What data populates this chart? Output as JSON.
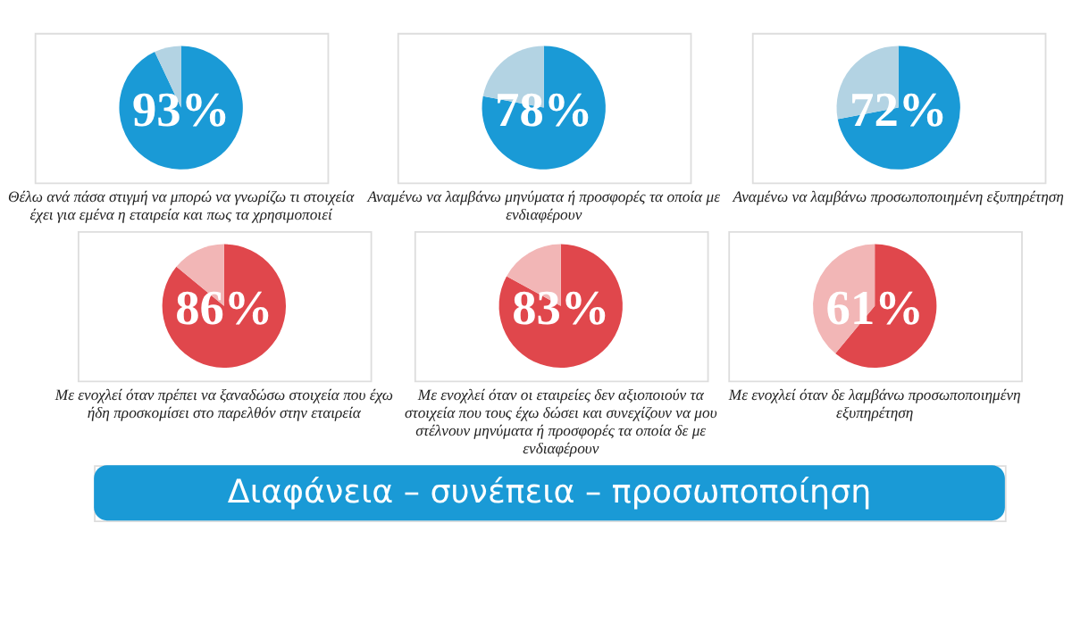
{
  "chart_data": [
    {
      "type": "pie",
      "title": "Θέλω ανά πάσα στιγμή να μπορώ να γνωρίζω τι στοιχεία έχει για εμένα η εταιρεία και πως τα χρησιμοποιεί",
      "categories": [
        null,
        null
      ],
      "values": [
        93,
        7
      ],
      "colors": [
        "#1a9ad6",
        "#b3d3e3"
      ],
      "value_labels": [
        "93%",
        null
      ]
    },
    {
      "type": "pie",
      "title": "Αναμένω να λαμβάνω μηνύματα ή προσφορές τα οποία με ενδιαφέρουν",
      "categories": [
        null,
        null
      ],
      "values": [
        78,
        22
      ],
      "colors": [
        "#1a9ad6",
        "#b3d3e3"
      ],
      "value_labels": [
        "78%",
        null
      ]
    },
    {
      "type": "pie",
      "title": "Αναμένω να λαμβάνω προσωποποιημένη εξυπηρέτηση",
      "categories": [
        null,
        null
      ],
      "values": [
        72,
        28
      ],
      "colors": [
        "#1a9ad6",
        "#b3d3e3"
      ],
      "value_labels": [
        "72%",
        null
      ]
    },
    {
      "type": "pie",
      "title": "Με ενοχλεί όταν πρέπει να ξαναδώσω στοιχεία που έχω ήδη προσκομίσει στο παρελθόν στην εταιρεία",
      "categories": [
        null,
        null
      ],
      "values": [
        86,
        14
      ],
      "colors": [
        "#e0474c",
        "#f2b6b6"
      ],
      "value_labels": [
        "86%",
        null
      ]
    },
    {
      "type": "pie",
      "title": "Με ενοχλεί όταν οι εταιρείες δεν αξιοποιούν τα στοιχεία που τους έχω δώσει και συνεχίζουν να μου στέλνουν μηνύματα ή προσφορές τα οποία δε με ενδιαφέρουν",
      "categories": [
        null,
        null
      ],
      "values": [
        83,
        17
      ],
      "colors": [
        "#e0474c",
        "#f2b6b6"
      ],
      "value_labels": [
        "83%",
        null
      ]
    },
    {
      "type": "pie",
      "title": "Με ενοχλεί όταν δε λαμβάνω προσωποποιημένη εξυπηρέτηση",
      "categories": [
        null,
        null
      ],
      "values": [
        61,
        39
      ],
      "colors": [
        "#e0474c",
        "#f2b6b6"
      ],
      "value_labels": [
        "61%",
        null
      ]
    },
    {
      "type": "other",
      "title": "Διαφάνεια – συνέπεια – προσωποποίηση"
    }
  ]
}
